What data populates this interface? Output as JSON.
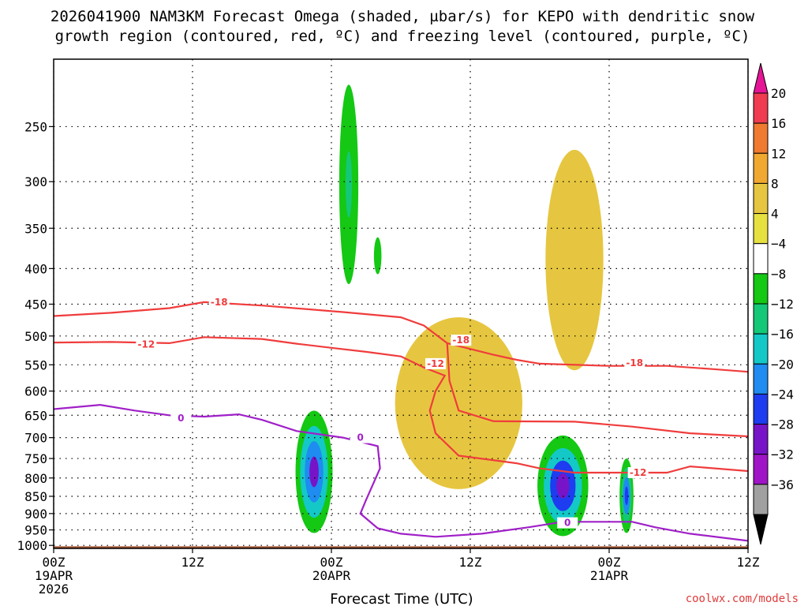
{
  "chart_data": {
    "type": "contour",
    "title_line1": "2026041900 NAM3KM Forecast Omega (shaded, µbar/s) for KEPO with dendritic snow",
    "title_line2": "growth region (contoured, red, ºC) and freezing level (contoured, purple, ºC)",
    "xlabel": "Forecast Time (UTC)",
    "credit": "coolwx.com/models",
    "x_range_hours": [
      0,
      60
    ],
    "y_range_hPa": [
      200,
      1010
    ],
    "x_ticks": [
      {
        "hour": 0,
        "lines": [
          "00Z",
          "19APR",
          "2026"
        ]
      },
      {
        "hour": 12,
        "lines": [
          "12Z"
        ]
      },
      {
        "hour": 24,
        "lines": [
          "00Z",
          "20APR"
        ]
      },
      {
        "hour": 36,
        "lines": [
          "12Z"
        ]
      },
      {
        "hour": 48,
        "lines": [
          "00Z",
          "21APR"
        ]
      },
      {
        "hour": 60,
        "lines": [
          "12Z"
        ]
      }
    ],
    "y_ticks": [
      250,
      300,
      350,
      400,
      450,
      500,
      550,
      600,
      650,
      700,
      750,
      800,
      850,
      900,
      950,
      1000
    ],
    "colorbar": {
      "levels": [
        "20",
        "16",
        "12",
        "8",
        "4",
        "−4",
        "−8",
        "−12",
        "−16",
        "−20",
        "−24",
        "−28",
        "−32",
        "−36"
      ],
      "colors": [
        "#f03c50",
        "#f07a30",
        "#f0a830",
        "#e6c640",
        "#e6e040",
        "#ffffff",
        "#14c814",
        "#14c878",
        "#14c8c8",
        "#1e8cf0",
        "#1e3cf0",
        "#7814c8",
        "#a014c8",
        "#a0a0a0"
      ],
      "top_color": "#e61496",
      "bottom_color": "#000000"
    },
    "terrain_color": "#a0522d",
    "contours": [
      {
        "name": "-18 °C",
        "color": "#f03c3c",
        "label": "-18",
        "points": [
          [
            0,
            468
          ],
          [
            5,
            463
          ],
          [
            10,
            456
          ],
          [
            13,
            447
          ],
          [
            18,
            452
          ],
          [
            25,
            462
          ],
          [
            30,
            470
          ],
          [
            32,
            483
          ],
          [
            34,
            512
          ],
          [
            38,
            532
          ],
          [
            40,
            541
          ],
          [
            42,
            548
          ],
          [
            48,
            552
          ],
          [
            53,
            552
          ],
          [
            57,
            558
          ],
          [
            60,
            563
          ]
        ],
        "label_positions": [
          [
            14.3,
            447
          ],
          [
            35.2,
            507
          ],
          [
            50.2,
            547
          ]
        ]
      },
      {
        "name": "-18 °C (lower branch)",
        "color": "#f03c3c",
        "label": "",
        "points": [
          [
            34,
            512
          ],
          [
            34.2,
            580
          ],
          [
            35,
            640
          ],
          [
            38,
            663
          ],
          [
            45,
            664
          ],
          [
            50,
            675
          ],
          [
            55,
            690
          ],
          [
            60,
            697
          ]
        ]
      },
      {
        "name": "-12 °C",
        "color": "#f03c3c",
        "label": "-12",
        "points": [
          [
            0,
            511
          ],
          [
            5,
            510
          ],
          [
            10,
            512
          ],
          [
            13,
            502
          ],
          [
            18,
            505
          ],
          [
            21,
            513
          ],
          [
            24,
            520
          ],
          [
            27,
            527
          ],
          [
            30,
            535
          ],
          [
            32,
            555
          ],
          [
            33.8,
            570
          ],
          [
            33,
            600
          ],
          [
            32.5,
            640
          ],
          [
            33,
            690
          ],
          [
            35,
            743
          ],
          [
            40,
            762
          ],
          [
            42,
            775
          ],
          [
            45,
            786
          ],
          [
            48,
            786
          ],
          [
            53,
            786
          ],
          [
            55,
            770
          ],
          [
            60,
            782
          ]
        ],
        "label_positions": [
          [
            8,
            514
          ],
          [
            33,
            548
          ],
          [
            50.5,
            786
          ]
        ]
      },
      {
        "name": "0 °C freezing level",
        "color": "#a020c8",
        "label": "0",
        "points": [
          [
            0,
            637
          ],
          [
            4,
            628
          ],
          [
            7,
            640
          ],
          [
            10,
            650
          ],
          [
            13,
            653
          ],
          [
            16,
            648
          ],
          [
            18,
            660
          ],
          [
            21,
            685
          ],
          [
            25,
            700
          ],
          [
            28,
            720
          ],
          [
            28.2,
            775
          ],
          [
            27,
            860
          ],
          [
            26.5,
            900
          ],
          [
            28,
            945
          ],
          [
            30,
            962
          ],
          [
            33,
            972
          ],
          [
            37,
            962
          ],
          [
            41,
            942
          ],
          [
            44,
            925
          ],
          [
            50,
            925
          ],
          [
            52,
            942
          ],
          [
            55,
            962
          ],
          [
            60,
            985
          ]
        ],
        "label_positions": [
          [
            11,
            656
          ],
          [
            26.5,
            700
          ],
          [
            44.4,
            928
          ]
        ]
      }
    ],
    "omega_cells": [
      {
        "x": 10,
        "top": 298,
        "bot": 345,
        "w": 0.4,
        "omega": -6
      },
      {
        "x": 19.5,
        "top": 345,
        "bot": 650,
        "w": 1.1,
        "omega": -8
      },
      {
        "x": 22.5,
        "top": 640,
        "bot": 960,
        "w": 1.6,
        "omega": -30
      },
      {
        "x": 25.5,
        "top": 195,
        "bot": 470,
        "w": 1.1,
        "omega": -14
      },
      {
        "x": 28,
        "top": 300,
        "bot": 490,
        "w": 1.3,
        "omega": -9
      },
      {
        "x": 44,
        "top": 695,
        "bot": 970,
        "w": 2.2,
        "omega": -32
      },
      {
        "x": 49.5,
        "top": 750,
        "bot": 960,
        "w": 0.6,
        "omega": -28
      },
      {
        "x": 35,
        "top": 470,
        "bot": 830,
        "w": 5.5,
        "omega": 6
      },
      {
        "x": 45,
        "top": 270,
        "bot": 560,
        "w": 2.5,
        "omega": 7
      }
    ]
  }
}
